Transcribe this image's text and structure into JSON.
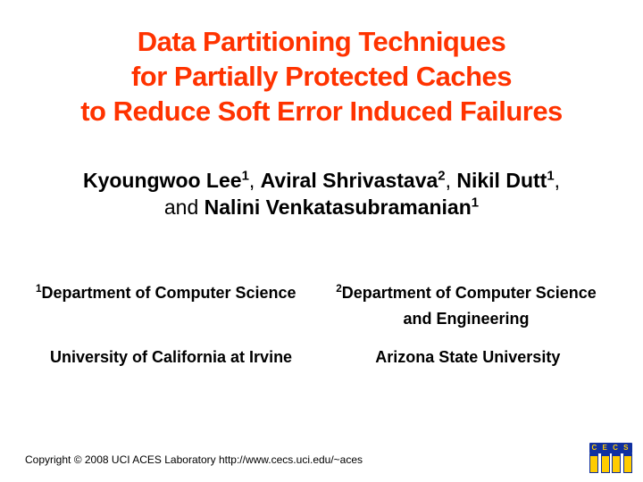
{
  "title_line1": "Data Partitioning Techniques",
  "title_line2": "for Partially Protected Caches",
  "title_line3": "to Reduce Soft Error Induced Failures",
  "authors": {
    "a1": "Kyoungwoo Lee",
    "s1": "1",
    "sep1": ", ",
    "a2": "Aviral Shrivastava",
    "s2": "2",
    "sep2": ", ",
    "a3": "Nikil Dutt",
    "s3": "1",
    "sep3": ", ",
    "and": "and ",
    "a4": "Nalini Venkatasubramanian",
    "s4": "1"
  },
  "affil": {
    "left_sup": "1",
    "left_dept": "Department of Computer Science",
    "left_univ": "University of California at Irvine",
    "right_sup": "2",
    "right_dept1": "Department of Computer Science",
    "right_dept2": "and Engineering",
    "right_univ": "Arizona State University"
  },
  "copyright": "Copyright © 2008  UCI ACES Laboratory    http://www.cecs.uci.edu/~aces",
  "logo_text": "C E C S",
  "colors": {
    "title": "#ff3300",
    "text": "#000000",
    "bg": "#ffffff",
    "logo_blue": "#1030a0",
    "logo_gold": "#ffcc00"
  },
  "fonts": {
    "title_size_pt": 24,
    "author_size_pt": 18,
    "affil_size_pt": 14,
    "copyright_size_pt": 9
  }
}
